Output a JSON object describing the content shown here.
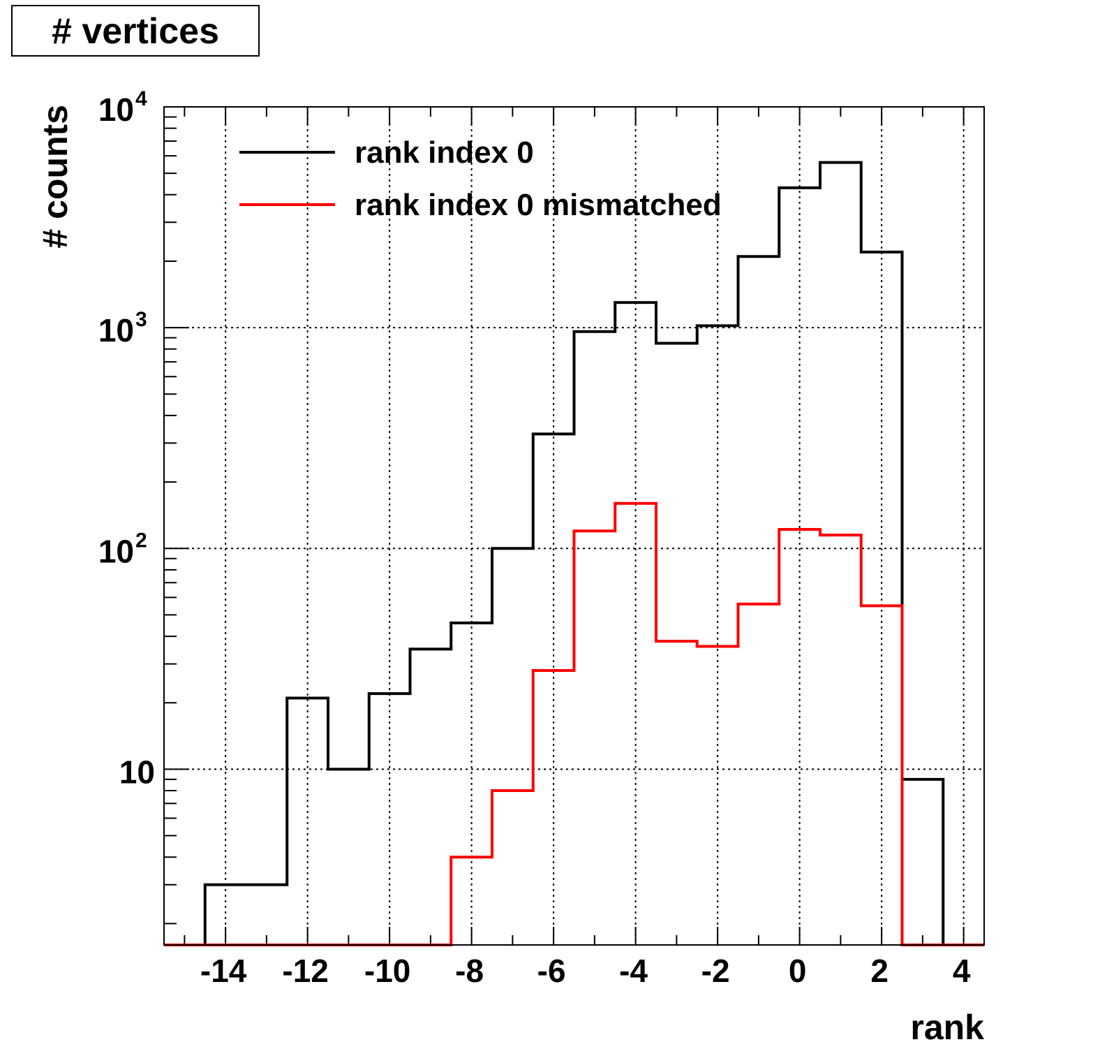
{
  "chart_data": {
    "type": "histogram",
    "title": "# vertices",
    "xlabel": "rank",
    "ylabel": "# counts",
    "xlim": [
      -15.5,
      4.5
    ],
    "ylim": [
      1.6,
      10000
    ],
    "yscale": "log",
    "grid": true,
    "legend_position": "top-left",
    "bin_edges": [
      -15.5,
      -14.5,
      -13.5,
      -12.5,
      -11.5,
      -10.5,
      -9.5,
      -8.5,
      -7.5,
      -6.5,
      -5.5,
      -4.5,
      -3.5,
      -2.5,
      -1.5,
      -0.5,
      0.5,
      1.5,
      2.5,
      3.5,
      4.5
    ],
    "x_ticks": [
      {
        "value": -14,
        "label": "-14"
      },
      {
        "value": -12,
        "label": "-12"
      },
      {
        "value": -10,
        "label": "-10"
      },
      {
        "value": -8,
        "label": "-8"
      },
      {
        "value": -6,
        "label": "-6"
      },
      {
        "value": -4,
        "label": "-4"
      },
      {
        "value": -2,
        "label": "-2"
      },
      {
        "value": 0,
        "label": "0"
      },
      {
        "value": 2,
        "label": "2"
      },
      {
        "value": 4,
        "label": "4"
      }
    ],
    "y_ticks": [
      {
        "value": 10,
        "base": "10",
        "exp": ""
      },
      {
        "value": 100,
        "base": "10",
        "exp": "2"
      },
      {
        "value": 1000,
        "base": "10",
        "exp": "3"
      },
      {
        "value": 10000,
        "base": "10",
        "exp": "4"
      }
    ],
    "series": [
      {
        "name": "rank index 0",
        "color": "#000000",
        "values": [
          0,
          3,
          3,
          21,
          10,
          22,
          35,
          46,
          100,
          330,
          960,
          1300,
          850,
          1020,
          2100,
          4300,
          5600,
          2200,
          9,
          0
        ]
      },
      {
        "name": "rank index 0 mismatched",
        "color": "#ff0000",
        "values": [
          0,
          0,
          0,
          0,
          0,
          0,
          0,
          4,
          8,
          28,
          120,
          160,
          38,
          36,
          56,
          122,
          115,
          55,
          0,
          0
        ]
      }
    ]
  }
}
